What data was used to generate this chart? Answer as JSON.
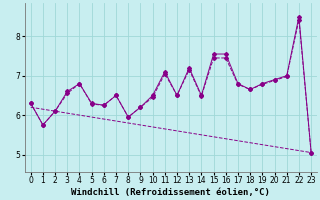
{
  "xlabel": "Windchill (Refroidissement éolien,°C)",
  "background_color": "#c8eef0",
  "line_color": "#880088",
  "x_ticks": [
    0,
    1,
    2,
    3,
    4,
    5,
    6,
    7,
    8,
    9,
    10,
    11,
    12,
    13,
    14,
    15,
    16,
    17,
    18,
    19,
    20,
    21,
    22,
    23
  ],
  "y_ticks": [
    5,
    6,
    7,
    8
  ],
  "ylim": [
    4.55,
    8.85
  ],
  "xlim": [
    -0.5,
    23.5
  ],
  "curve1_x": [
    0,
    1,
    2,
    3,
    4,
    5,
    6,
    7,
    8,
    9,
    10,
    11,
    12,
    13,
    14,
    15,
    16,
    17,
    18,
    19,
    20,
    21,
    22,
    23
  ],
  "curve1_y": [
    6.3,
    5.75,
    6.1,
    6.6,
    6.8,
    6.3,
    6.25,
    6.5,
    5.95,
    6.2,
    6.5,
    7.1,
    6.5,
    7.2,
    6.5,
    7.55,
    7.55,
    6.8,
    6.65,
    6.8,
    6.9,
    7.0,
    8.5,
    5.05
  ],
  "curve2_x": [
    0,
    1,
    2,
    3,
    4,
    5,
    6,
    7,
    8,
    9,
    10,
    11,
    12,
    13,
    14,
    15,
    16,
    17,
    18,
    19,
    20,
    21,
    22,
    23
  ],
  "curve2_y": [
    6.3,
    5.75,
    6.1,
    6.55,
    6.8,
    6.28,
    6.25,
    6.5,
    5.95,
    6.2,
    6.45,
    7.05,
    6.5,
    7.15,
    6.48,
    7.45,
    7.45,
    6.78,
    6.65,
    6.78,
    6.88,
    6.98,
    8.42,
    5.05
  ],
  "trend_x": [
    0,
    23
  ],
  "trend_y": [
    6.2,
    5.05
  ],
  "grid_color": "#a0d8d8",
  "tick_fontsize": 5.5,
  "label_fontsize": 6.5,
  "linewidth": 0.7,
  "markersize": 2.0
}
